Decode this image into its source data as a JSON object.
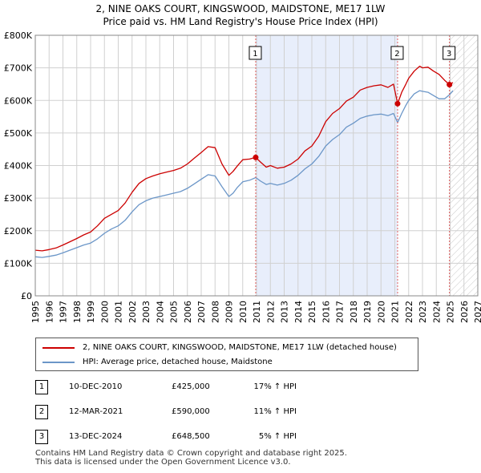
{
  "titles": {
    "line1": "2, NINE OAKS COURT, KINGSWOOD, MAIDSTONE, ME17 1LW",
    "line2": "Price paid vs. HM Land Registry's House Price Index (HPI)"
  },
  "colors": {
    "property": "#cc0000",
    "hpi": "#6b96c8",
    "shade": "#e8eefb",
    "marker_line": "#e06060",
    "grid": "#d0d0d0",
    "axis": "#888888"
  },
  "chart_data": {
    "type": "line",
    "title": "Price paid vs. HM Land Registry's House Price Index (HPI)",
    "xlabel": "",
    "ylabel": "",
    "xlim": [
      1995,
      2027
    ],
    "ylim": [
      0,
      800000
    ],
    "x_ticks": [
      1995,
      1996,
      1997,
      1998,
      1999,
      2000,
      2001,
      2002,
      2003,
      2004,
      2005,
      2006,
      2007,
      2008,
      2009,
      2010,
      2011,
      2012,
      2013,
      2014,
      2015,
      2016,
      2017,
      2018,
      2019,
      2020,
      2021,
      2022,
      2023,
      2024,
      2025,
      2026,
      2027
    ],
    "y_ticks": [
      {
        "value": 0,
        "label": "£0"
      },
      {
        "value": 100000,
        "label": "£100K"
      },
      {
        "value": 200000,
        "label": "£200K"
      },
      {
        "value": 300000,
        "label": "£300K"
      },
      {
        "value": 400000,
        "label": "£400K"
      },
      {
        "value": 500000,
        "label": "£500K"
      },
      {
        "value": 600000,
        "label": "£600K"
      },
      {
        "value": 700000,
        "label": "£700K"
      },
      {
        "value": 800000,
        "label": "£800K"
      }
    ],
    "grid": true,
    "shaded_period": [
      2010.94,
      2021.2
    ],
    "future_hatch_from": 2025.0,
    "series": [
      {
        "name": "2, NINE OAKS COURT, KINGSWOOD, MAIDSTONE, ME17 1LW (detached house)",
        "color_key": "property",
        "x": [
          1995.0,
          1995.5,
          1996.0,
          1996.5,
          1997.0,
          1997.5,
          1998.0,
          1998.5,
          1999.0,
          1999.5,
          2000.0,
          2000.5,
          2001.0,
          2001.5,
          2002.0,
          2002.5,
          2003.0,
          2003.5,
          2004.0,
          2004.5,
          2005.0,
          2005.5,
          2006.0,
          2006.5,
          2007.0,
          2007.5,
          2008.0,
          2008.5,
          2009.0,
          2009.3,
          2009.6,
          2010.0,
          2010.5,
          2010.94,
          2011.3,
          2011.7,
          2012.0,
          2012.5,
          2013.0,
          2013.5,
          2014.0,
          2014.5,
          2015.0,
          2015.5,
          2016.0,
          2016.5,
          2017.0,
          2017.5,
          2018.0,
          2018.5,
          2019.0,
          2019.5,
          2020.0,
          2020.5,
          2020.9,
          2021.2,
          2021.5,
          2021.8,
          2022.0,
          2022.4,
          2022.8,
          2023.0,
          2023.4,
          2023.8,
          2024.2,
          2024.6,
          2024.95,
          2025.2
        ],
        "values": [
          140000,
          138000,
          142000,
          147000,
          156000,
          166000,
          176000,
          187000,
          196000,
          215000,
          238000,
          250000,
          262000,
          285000,
          318000,
          345000,
          360000,
          368000,
          375000,
          380000,
          385000,
          392000,
          405000,
          423000,
          440000,
          458000,
          455000,
          405000,
          370000,
          382000,
          398000,
          418000,
          420000,
          425000,
          410000,
          395000,
          400000,
          392000,
          395000,
          405000,
          420000,
          445000,
          460000,
          490000,
          535000,
          560000,
          575000,
          598000,
          610000,
          632000,
          640000,
          645000,
          648000,
          640000,
          650000,
          590000,
          625000,
          650000,
          668000,
          690000,
          705000,
          700000,
          702000,
          690000,
          680000,
          662000,
          648500,
          655000
        ]
      },
      {
        "name": "HPI: Average price, detached house, Maidstone",
        "color_key": "hpi",
        "x": [
          1995.0,
          1995.5,
          1996.0,
          1996.5,
          1997.0,
          1997.5,
          1998.0,
          1998.5,
          1999.0,
          1999.5,
          2000.0,
          2000.5,
          2001.0,
          2001.5,
          2002.0,
          2002.5,
          2003.0,
          2003.5,
          2004.0,
          2004.5,
          2005.0,
          2005.5,
          2006.0,
          2006.5,
          2007.0,
          2007.5,
          2008.0,
          2008.5,
          2009.0,
          2009.3,
          2009.6,
          2010.0,
          2010.5,
          2010.94,
          2011.3,
          2011.7,
          2012.0,
          2012.5,
          2013.0,
          2013.5,
          2014.0,
          2014.5,
          2015.0,
          2015.5,
          2016.0,
          2016.5,
          2017.0,
          2017.5,
          2018.0,
          2018.5,
          2019.0,
          2019.5,
          2020.0,
          2020.5,
          2020.9,
          2021.2,
          2021.5,
          2021.8,
          2022.0,
          2022.4,
          2022.8,
          2023.0,
          2023.4,
          2023.8,
          2024.2,
          2024.6,
          2024.95,
          2025.2
        ],
        "values": [
          120000,
          118000,
          121000,
          125000,
          132000,
          140000,
          148000,
          156000,
          162000,
          175000,
          192000,
          205000,
          215000,
          232000,
          258000,
          280000,
          292000,
          300000,
          305000,
          310000,
          315000,
          320000,
          330000,
          344000,
          358000,
          372000,
          368000,
          335000,
          305000,
          315000,
          332000,
          350000,
          355000,
          363000,
          352000,
          342000,
          345000,
          340000,
          345000,
          355000,
          370000,
          390000,
          405000,
          428000,
          460000,
          480000,
          495000,
          518000,
          530000,
          545000,
          552000,
          556000,
          558000,
          553000,
          560000,
          532000,
          560000,
          585000,
          600000,
          620000,
          630000,
          628000,
          625000,
          615000,
          605000,
          605000,
          617000,
          630000
        ]
      }
    ],
    "annotations": [
      {
        "label": "1",
        "x": 2010.94,
        "y": 425000
      },
      {
        "label": "2",
        "x": 2021.2,
        "y": 590000
      },
      {
        "label": "3",
        "x": 2024.95,
        "y": 648500
      }
    ]
  },
  "legend": {
    "property_label": "2, NINE OAKS COURT, KINGSWOOD, MAIDSTONE, ME17 1LW (detached house)",
    "hpi_label": "HPI: Average price, detached house, Maidstone"
  },
  "transactions": [
    {
      "num": "1",
      "date": "10-DEC-2010",
      "price": "£425,000",
      "hpi": "17% ↑ HPI"
    },
    {
      "num": "2",
      "date": "12-MAR-2021",
      "price": "£590,000",
      "hpi": "11% ↑ HPI"
    },
    {
      "num": "3",
      "date": "13-DEC-2024",
      "price": "£648,500",
      "hpi": "5% ↑ HPI"
    }
  ],
  "footer": {
    "line1": "Contains HM Land Registry data © Crown copyright and database right 2025.",
    "line2": "This data is licensed under the Open Government Licence v3.0."
  }
}
